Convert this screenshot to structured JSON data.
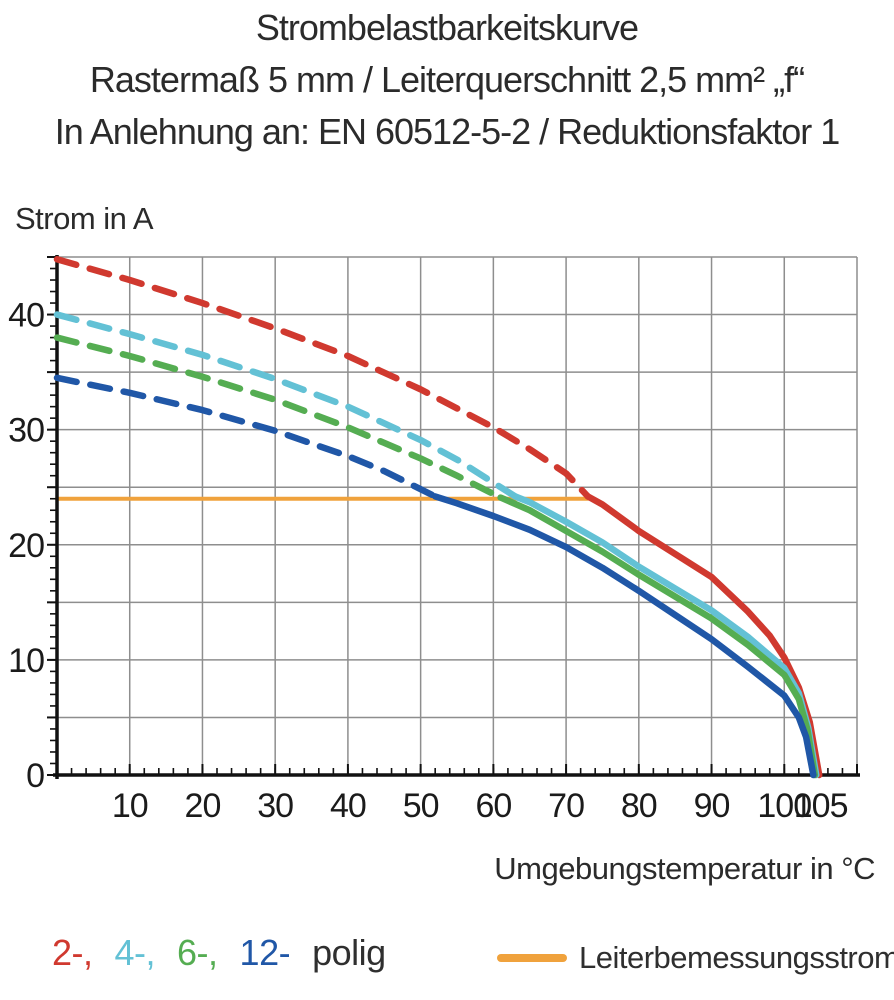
{
  "page": {
    "background": "#ffffff",
    "text_color": "#2b2b2b"
  },
  "title": {
    "line1": "Strombelastbarkeitskurve",
    "line2": "Rastermaß 5 mm / Leiterquerschnitt 2,5 mm² „f“",
    "line3": "In Anlehnung an: EN 60512-5-2 / Reduktionsfaktor 1"
  },
  "chart_data": {
    "type": "line",
    "title": "Strombelastbarkeitskurve",
    "xlabel": "Umgebungstemperatur in °C",
    "ylabel": "Strom in A",
    "xlim": [
      0,
      110
    ],
    "ylim": [
      0,
      45
    ],
    "grid": true,
    "grid_color": "#8e8e8e",
    "axis_color": "#111111",
    "x_major_grid_step": 10,
    "y_major_grid_step": 5,
    "x_minor_tick_step": 2,
    "y_minor_tick_step": 1,
    "x_tick_labels": [
      10,
      20,
      30,
      40,
      50,
      60,
      70,
      80,
      90,
      100,
      105
    ],
    "y_tick_labels": [
      0,
      10,
      20,
      30,
      40
    ],
    "legend_position": "bottom",
    "series": [
      {
        "name": "2-polig",
        "color": "#d0392f",
        "dashed_points": [
          [
            0,
            44.8
          ],
          [
            10,
            43.0
          ],
          [
            20,
            41.0
          ],
          [
            30,
            38.8
          ],
          [
            40,
            36.4
          ],
          [
            50,
            33.5
          ],
          [
            60,
            30.2
          ],
          [
            65,
            28.3
          ],
          [
            70,
            26.2
          ],
          [
            73,
            24.2
          ]
        ],
        "solid_points": [
          [
            73,
            24.2
          ],
          [
            75,
            23.5
          ],
          [
            80,
            21.2
          ],
          [
            85,
            19.2
          ],
          [
            90,
            17.2
          ],
          [
            95,
            14.2
          ],
          [
            98,
            12.1
          ],
          [
            100,
            10.2
          ],
          [
            102,
            7.6
          ],
          [
            103.5,
            4.6
          ],
          [
            104.8,
            0
          ]
        ]
      },
      {
        "name": "4-polig",
        "color": "#63c1d5",
        "dashed_points": [
          [
            0,
            40.0
          ],
          [
            10,
            38.3
          ],
          [
            20,
            36.5
          ],
          [
            30,
            34.4
          ],
          [
            40,
            32.0
          ],
          [
            50,
            29.1
          ],
          [
            55,
            27.4
          ],
          [
            60,
            25.4
          ],
          [
            63,
            24.2
          ]
        ],
        "solid_points": [
          [
            63,
            24.2
          ],
          [
            65,
            23.7
          ],
          [
            70,
            22.0
          ],
          [
            75,
            20.2
          ],
          [
            80,
            18.1
          ],
          [
            85,
            16.2
          ],
          [
            90,
            14.3
          ],
          [
            95,
            12.0
          ],
          [
            100,
            9.3
          ],
          [
            102,
            7.1
          ],
          [
            103.3,
            4.1
          ],
          [
            104.4,
            0
          ]
        ]
      },
      {
        "name": "6-polig",
        "color": "#55ad52",
        "dashed_points": [
          [
            0,
            38.0
          ],
          [
            10,
            36.4
          ],
          [
            20,
            34.6
          ],
          [
            30,
            32.6
          ],
          [
            40,
            30.2
          ],
          [
            50,
            27.5
          ],
          [
            55,
            26.0
          ],
          [
            61,
            24.1
          ]
        ],
        "solid_points": [
          [
            61,
            24.1
          ],
          [
            65,
            23.0
          ],
          [
            70,
            21.2
          ],
          [
            75,
            19.4
          ],
          [
            80,
            17.4
          ],
          [
            85,
            15.5
          ],
          [
            90,
            13.6
          ],
          [
            95,
            11.3
          ],
          [
            100,
            8.7
          ],
          [
            102,
            6.6
          ],
          [
            103.2,
            3.9
          ],
          [
            104.2,
            0
          ]
        ]
      },
      {
        "name": "12-polig",
        "color": "#2057a7",
        "dashed_points": [
          [
            0,
            34.5
          ],
          [
            10,
            33.2
          ],
          [
            20,
            31.7
          ],
          [
            30,
            29.9
          ],
          [
            40,
            27.7
          ],
          [
            45,
            26.4
          ],
          [
            52,
            24.2
          ]
        ],
        "solid_points": [
          [
            52,
            24.2
          ],
          [
            55,
            23.6
          ],
          [
            60,
            22.5
          ],
          [
            65,
            21.3
          ],
          [
            70,
            19.8
          ],
          [
            75,
            18.0
          ],
          [
            80,
            16.0
          ],
          [
            85,
            13.9
          ],
          [
            90,
            11.8
          ],
          [
            95,
            9.4
          ],
          [
            100,
            6.9
          ],
          [
            102,
            5.0
          ],
          [
            103,
            3.3
          ],
          [
            104,
            0
          ]
        ]
      }
    ],
    "reference_line": {
      "name": "Leiterbemessungsstrom",
      "color": "#f0a23c",
      "y_value": 24,
      "x_start": 0,
      "x_end": 73
    }
  },
  "legend": {
    "pole_items": [
      {
        "label": "2-",
        "color": "#d0392f"
      },
      {
        "label": "4-",
        "color": "#63c1d5"
      },
      {
        "label": "6-",
        "color": "#55ad52"
      },
      {
        "label": "12-",
        "color": "#2057a7"
      }
    ],
    "item_separator": ",",
    "pole_suffix": "polig",
    "reference": {
      "label": "Leiterbemessungsstrom",
      "swatch_color": "#f0a23c"
    }
  }
}
